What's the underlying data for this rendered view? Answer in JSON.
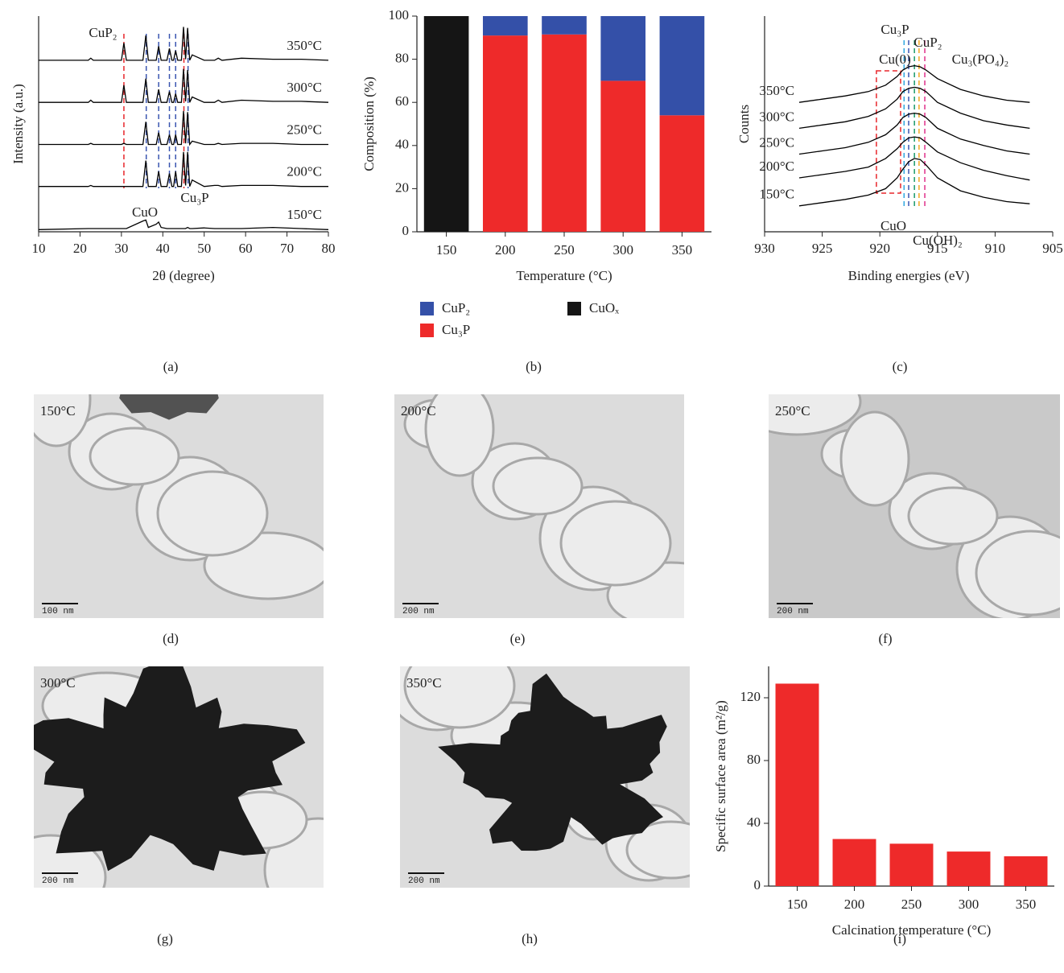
{
  "chart_data": [
    {
      "type": "line",
      "panel": "(a)",
      "x_label": "2θ (degree)",
      "y_label": "Intensity (a.u.)",
      "xlim": [
        10,
        80
      ],
      "xticks": [
        10,
        20,
        30,
        40,
        50,
        60,
        70,
        80
      ],
      "ylim": [
        0,
        100
      ],
      "x": [
        10,
        22,
        22.6,
        23.2,
        30,
        30.6,
        31.2,
        35.2,
        35.9,
        36.5,
        38.4,
        39,
        39.6,
        41,
        41.6,
        42.2,
        42.6,
        43.1,
        43.6,
        44.5,
        45,
        45.5,
        46,
        46.5,
        47.1,
        50,
        52.5,
        53.4,
        54.3,
        59,
        66.6,
        73.4,
        80
      ],
      "series": [
        {
          "name": "350°C",
          "color": "#000000",
          "values": [
            79.5,
            79.5,
            80.5,
            79.5,
            79.5,
            87.5,
            79.5,
            79.5,
            91,
            79.5,
            79.5,
            86,
            79.5,
            79.5,
            85,
            79.5,
            79.5,
            84,
            79.5,
            79.5,
            95,
            80,
            94.5,
            79.5,
            82,
            79.5,
            79.5,
            80.5,
            79.5,
            80.5,
            80,
            80,
            79.5
          ]
        },
        {
          "name": "300°C",
          "color": "#000000",
          "values": [
            60,
            60,
            61,
            60,
            60,
            68,
            60,
            60,
            71,
            60,
            60,
            66,
            60,
            60,
            65,
            60,
            60,
            64,
            60,
            60,
            75.5,
            60.5,
            75,
            60,
            62.5,
            60,
            60,
            61,
            60,
            61,
            60.5,
            60.5,
            60
          ]
        },
        {
          "name": "250°C",
          "color": "#000000",
          "values": [
            40.5,
            40.5,
            41,
            40.5,
            40.5,
            41,
            40.5,
            40.5,
            51,
            40.5,
            40.5,
            46,
            40.5,
            40.5,
            45,
            40.5,
            40.5,
            45,
            40.5,
            40.5,
            56,
            41,
            55.5,
            40.5,
            42,
            40.5,
            40.5,
            41,
            40.5,
            41,
            41,
            40.5,
            40.5
          ]
        },
        {
          "name": "200°C",
          "color": "#000000",
          "values": [
            21,
            21,
            21.5,
            21,
            21,
            21,
            21,
            21,
            33,
            21,
            21,
            28,
            21,
            21,
            27,
            21,
            21,
            28,
            21,
            21,
            37,
            21.5,
            37,
            21,
            24,
            21,
            21.5,
            21.5,
            21,
            21.5,
            21.5,
            21,
            21
          ]
        },
        {
          "name": "150°C",
          "color": "#000000",
          "values": [
            1,
            1.5,
            1.5,
            1.5,
            1.5,
            1.5,
            1.5,
            5,
            5.5,
            2,
            3.5,
            4.5,
            2,
            1.5,
            1.5,
            1.5,
            1.5,
            1.5,
            1.5,
            1.5,
            1.5,
            1.5,
            2,
            1.5,
            1.5,
            1.8,
            1.5,
            1.5,
            1.5,
            1.5,
            2,
            1.5,
            1
          ]
        }
      ],
      "reference_lines": [
        {
          "x": 30.6,
          "color": "#e8262b"
        },
        {
          "x": 36,
          "color": "#3a55b0"
        },
        {
          "x": 39,
          "color": "#3a55b0"
        },
        {
          "x": 41.6,
          "color": "#3a55b0"
        },
        {
          "x": 43.1,
          "color": "#3a55b0"
        },
        {
          "x": 45.1,
          "color": "#e8262b"
        },
        {
          "x": 46.1,
          "color": "#3a55b0"
        }
      ],
      "annotations": [
        {
          "text": "CuP₂",
          "color": "#e8262b"
        },
        {
          "text": "Cu₃P",
          "color": "#3a55b0"
        },
        {
          "text": "CuO",
          "color": "#000000"
        }
      ]
    },
    {
      "type": "bar",
      "panel": "(b)",
      "x_label": "Temperature (°C)",
      "y_label": "Composition (%)",
      "categories": [
        "150",
        "200",
        "250",
        "300",
        "350"
      ],
      "ylim": [
        0,
        100
      ],
      "yticks": [
        0,
        20,
        40,
        60,
        80,
        100
      ],
      "series": [
        {
          "name": "CuP₂",
          "color": "#3450a8",
          "values": [
            0,
            9,
            8.5,
            30,
            46
          ]
        },
        {
          "name": "Cu₃P",
          "color": "#ee2a2a",
          "values": [
            0,
            91,
            91.5,
            70,
            54
          ]
        },
        {
          "name": "CuOₓ",
          "color": "#151515",
          "values": [
            100,
            0,
            0,
            0,
            0
          ]
        }
      ]
    },
    {
      "type": "line",
      "panel": "(c)",
      "x_label": "Binding energies (eV)",
      "y_label": "Counts",
      "xlim": [
        930,
        905
      ],
      "xticks": [
        930,
        925,
        920,
        915,
        910,
        905
      ],
      "ylim": [
        0,
        100
      ],
      "x": [
        927,
        925,
        923,
        921,
        919.5,
        918.5,
        918,
        917.5,
        917,
        916.5,
        916,
        915,
        913,
        911,
        909,
        907
      ],
      "series": [
        {
          "name": "350°C",
          "color": "#000000",
          "values": [
            60,
            61.5,
            63,
            65,
            68,
            72,
            75,
            76.5,
            77,
            76.5,
            75,
            71,
            66,
            63,
            61,
            60
          ]
        },
        {
          "name": "300°C",
          "color": "#000000",
          "values": [
            48,
            49.5,
            51,
            53.5,
            57,
            61.5,
            65,
            66.5,
            67,
            66.5,
            65,
            60,
            55,
            51.5,
            49.5,
            48
          ]
        },
        {
          "name": "250°C",
          "color": "#000000",
          "values": [
            36,
            37.5,
            39,
            41.5,
            45,
            49.5,
            53,
            54.5,
            55,
            54.5,
            53,
            48,
            43,
            40,
            37.5,
            36
          ]
        },
        {
          "name": "200°C",
          "color": "#000000",
          "values": [
            25,
            26.5,
            28,
            30,
            34,
            38.5,
            41.5,
            43.5,
            44,
            43.5,
            41.5,
            37,
            32,
            28.5,
            26,
            24
          ]
        },
        {
          "name": "150°C",
          "color": "#000000",
          "values": [
            12,
            13.5,
            15,
            17,
            20,
            25,
            29,
            32.5,
            34,
            33.5,
            31,
            25,
            19,
            16,
            14,
            13
          ]
        }
      ],
      "reference_lines": [
        {
          "x": 917.5,
          "color": "#3a55b0"
        },
        {
          "x": 916.6,
          "color": "#f0a820"
        },
        {
          "x": 916.1,
          "color": "#e0308a"
        },
        {
          "x": 917.9,
          "color": "#30a8e0"
        },
        {
          "x": 917,
          "color": "#1a9a6a"
        }
      ],
      "region": {
        "x": [
          920.3,
          918.2
        ],
        "color": "#e8262b"
      },
      "annotations": [
        {
          "text": "Cu₃P",
          "color": "#3a55b0"
        },
        {
          "text": "CuP₂",
          "color": "#f0a820"
        },
        {
          "text": "Cu(0)",
          "color": "#e8262b"
        },
        {
          "text": "Cu₃(PO₄)₂",
          "color": "#e0308a"
        },
        {
          "text": "CuO",
          "color": "#30a8e0"
        },
        {
          "text": "Cu(OH)₂",
          "color": "#1a9a6a"
        }
      ]
    },
    {
      "type": "bar",
      "panel": "(i)",
      "x_label": "Calcination temperature (°C)",
      "y_label": "Specific surface area (m²/g)",
      "categories": [
        "150",
        "200",
        "250",
        "300",
        "350"
      ],
      "values": [
        129,
        30,
        27,
        22,
        19
      ],
      "color": "#ee2a2a",
      "ylim": [
        0,
        140
      ],
      "yticks": [
        0,
        40,
        80,
        120
      ]
    }
  ],
  "images": [
    {
      "panel": "(d)",
      "label": "150°C",
      "scale": "100 nm"
    },
    {
      "panel": "(e)",
      "label": "200°C",
      "scale": "200 nm"
    },
    {
      "panel": "(f)",
      "label": "250°C",
      "scale": "200 nm"
    },
    {
      "panel": "(g)",
      "label": "300°C",
      "scale": "200 nm"
    },
    {
      "panel": "(h)",
      "label": "350°C",
      "scale": "200 nm"
    }
  ]
}
